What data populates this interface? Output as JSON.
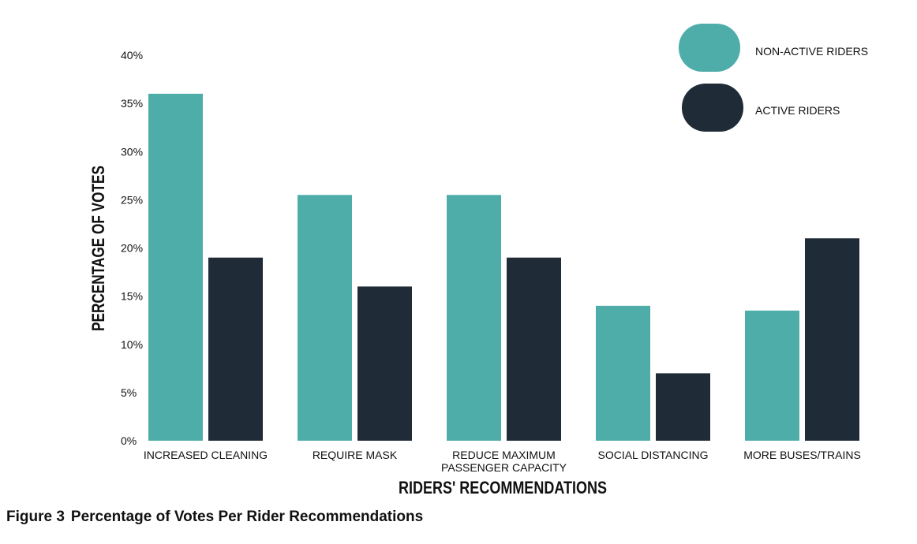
{
  "caption": {
    "figure": "Figure 3",
    "text": "Percentage of Votes Per Rider Recommendations"
  },
  "colors": {
    "non_active": "#4fada9",
    "active": "#1f2b37",
    "text": "#111111"
  },
  "chart_data": {
    "type": "bar",
    "title": "",
    "xlabel": "RIDERS' RECOMMENDATIONS",
    "ylabel": "PERCENTAGE OF VOTES",
    "ylim": [
      0,
      40
    ],
    "yticks": [
      "0%",
      "5%",
      "10%",
      "15%",
      "20%",
      "25%",
      "30%",
      "35%",
      "40%"
    ],
    "categories": [
      [
        "INCREASED CLEANING"
      ],
      [
        "REQUIRE MASK"
      ],
      [
        "REDUCE MAXIMUM",
        "PASSENGER CAPACITY"
      ],
      [
        "SOCIAL DISTANCING"
      ],
      [
        "MORE BUSES/TRAINS"
      ]
    ],
    "series": [
      {
        "name": "NON-ACTIVE RIDERS",
        "values": [
          36,
          25.5,
          25.5,
          14,
          13.5
        ]
      },
      {
        "name": "ACTIVE RIDERS",
        "values": [
          19,
          16,
          19,
          7,
          21
        ]
      }
    ],
    "grid": false,
    "legend": "top-right"
  }
}
